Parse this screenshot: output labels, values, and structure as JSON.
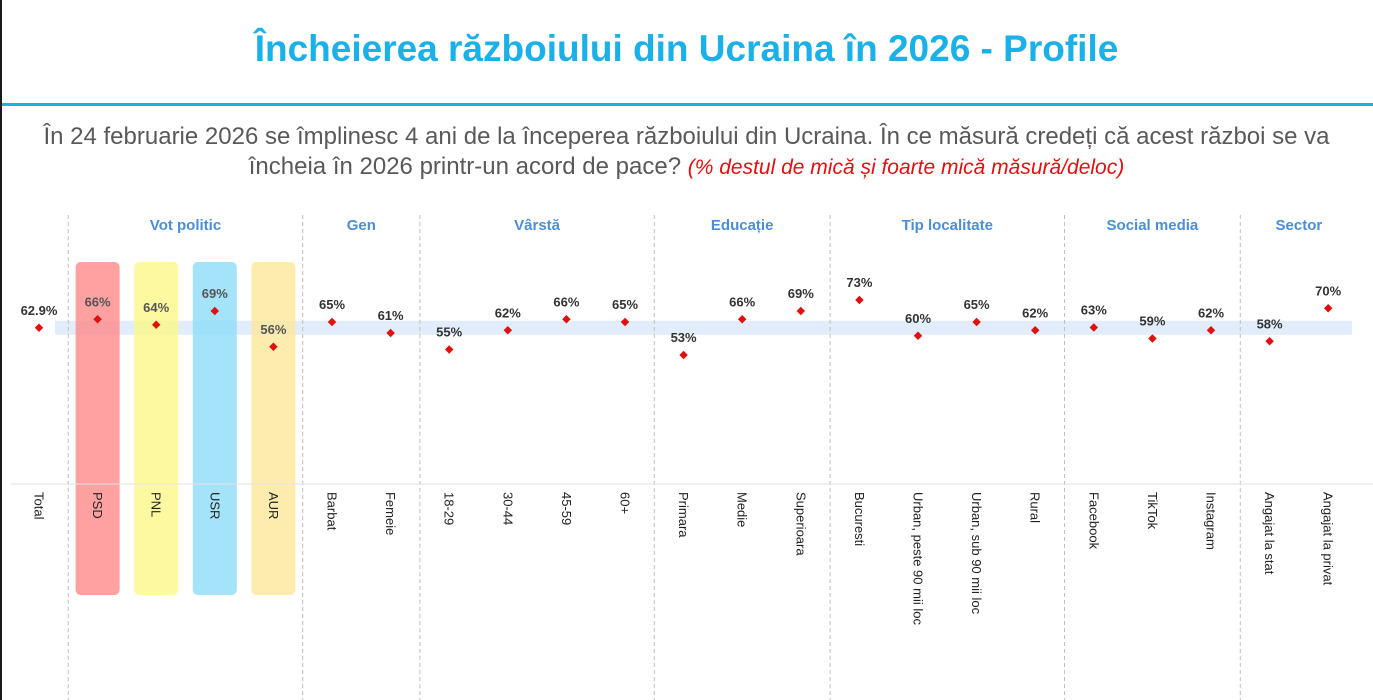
{
  "title": "Încheierea războiului din Ucraina în 2026 - Profile",
  "question": "În 24 februarie 2026 se împlinesc 4 ani de la începerea războiului din Ucraina. În ce măsură credeți că acest război se va încheia în 2026 printr-un acord de pace?",
  "question_note": "(% destul de mică și foarte mică măsură/deloc)",
  "colors": {
    "title": "#1ab0e8",
    "group_label": "#4a8fd6",
    "marker": "#e01010",
    "reference_band": "#dceaf9",
    "PSD": "#ff8a8a",
    "PNL": "#fbf788",
    "USR": "#8ddcf7",
    "AUR": "#fde79a"
  },
  "chart_data": {
    "type": "scatter",
    "ylabel": "",
    "ylim": [
      40,
      80
    ],
    "reference_value": 62.9,
    "groups": [
      {
        "name": "",
        "categories": [
          "Total"
        ]
      },
      {
        "name": "Vot politic",
        "categories": [
          "PSD",
          "PNL",
          "USR",
          "AUR"
        ]
      },
      {
        "name": "Gen",
        "categories": [
          "Barbat",
          "Femeie"
        ]
      },
      {
        "name": "Vârstă",
        "categories": [
          "18-29",
          "30-44",
          "45-59",
          "60+"
        ]
      },
      {
        "name": "Educație",
        "categories": [
          "Primara",
          "Medie",
          "Superioara"
        ]
      },
      {
        "name": "Tip localitate",
        "categories": [
          "Bucuresti",
          "Urban, peste 90 mii loc",
          "Urban, sub 90 mii loc",
          "Rural"
        ]
      },
      {
        "name": "Social media",
        "categories": [
          "Facebook",
          "TikTok",
          "Instagram"
        ]
      },
      {
        "name": "Sector",
        "categories": [
          "Angajat la stat",
          "Angajat la privat"
        ]
      }
    ],
    "categories": [
      "Total",
      "PSD",
      "PNL",
      "USR",
      "AUR",
      "Barbat",
      "Femeie",
      "18-29",
      "30-44",
      "45-59",
      "60+",
      "Primara",
      "Medie",
      "Superioara",
      "Bucuresti",
      "Urban, peste 90 mii loc",
      "Urban, sub 90 mii loc",
      "Rural",
      "Facebook",
      "TikTok",
      "Instagram",
      "Angajat la stat",
      "Angajat la privat"
    ],
    "values": [
      62.9,
      66,
      64,
      69,
      56,
      65,
      61,
      55,
      62,
      66,
      65,
      53,
      66,
      69,
      73,
      60,
      65,
      62,
      63,
      59,
      62,
      58,
      70
    ],
    "labels": [
      "62.9%",
      "66%",
      "64%",
      "69%",
      "56%",
      "65%",
      "61%",
      "55%",
      "62%",
      "66%",
      "65%",
      "53%",
      "66%",
      "69%",
      "73%",
      "60%",
      "65%",
      "62%",
      "63%",
      "59%",
      "62%",
      "58%",
      "70%"
    ],
    "highlighted": [
      "PSD",
      "PNL",
      "USR",
      "AUR"
    ]
  }
}
